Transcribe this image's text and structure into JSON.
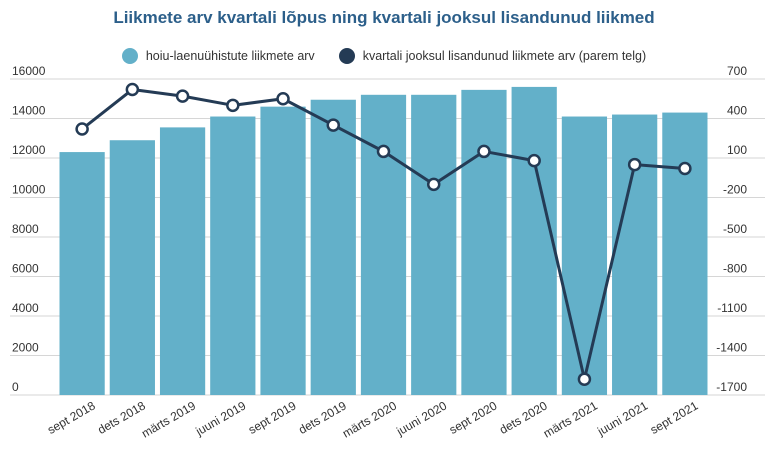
{
  "chart_data": {
    "type": "bar",
    "title": "Liikmete arv kvartali lõpus ning kvartali jooksul lisandunud liikmed",
    "categories": [
      "sept 2018",
      "dets 2018",
      "märts 2019",
      "juuni 2019",
      "sept 2019",
      "dets 2019",
      "märts 2020",
      "juuni 2020",
      "sept 2020",
      "dets 2020",
      "märts 2021",
      "juuni 2021",
      "sept 2021"
    ],
    "series": [
      {
        "name": "hoiu-laenuühistute liikmete arv",
        "type": "bar",
        "axis": "left",
        "values": [
          12300,
          12900,
          13550,
          14100,
          14600,
          14950,
          15200,
          15200,
          15450,
          15600,
          14100,
          14200,
          14300
        ]
      },
      {
        "name": "kvartali jooksul lisandunud liikmete arv (parem telg)",
        "type": "line",
        "axis": "right",
        "values": [
          320,
          620,
          570,
          500,
          550,
          350,
          150,
          -100,
          150,
          80,
          -1580,
          50,
          20
        ]
      }
    ],
    "y_left": {
      "ylim": [
        0,
        16000
      ],
      "ticks": [
        "16000",
        "14000",
        "12000",
        "10000",
        "8000",
        "6000",
        "4000",
        "2000",
        "0"
      ]
    },
    "y_right": {
      "ylim": [
        -1700,
        700
      ],
      "ticks": [
        "700",
        "400",
        "100",
        "-200",
        "-500",
        "-800",
        "-1100",
        "-1400",
        "-1700"
      ]
    },
    "grid": true,
    "legend": "top",
    "colors": {
      "bar": "#63b0c9",
      "line": "#243b55",
      "title": "#2c5f8a"
    }
  }
}
